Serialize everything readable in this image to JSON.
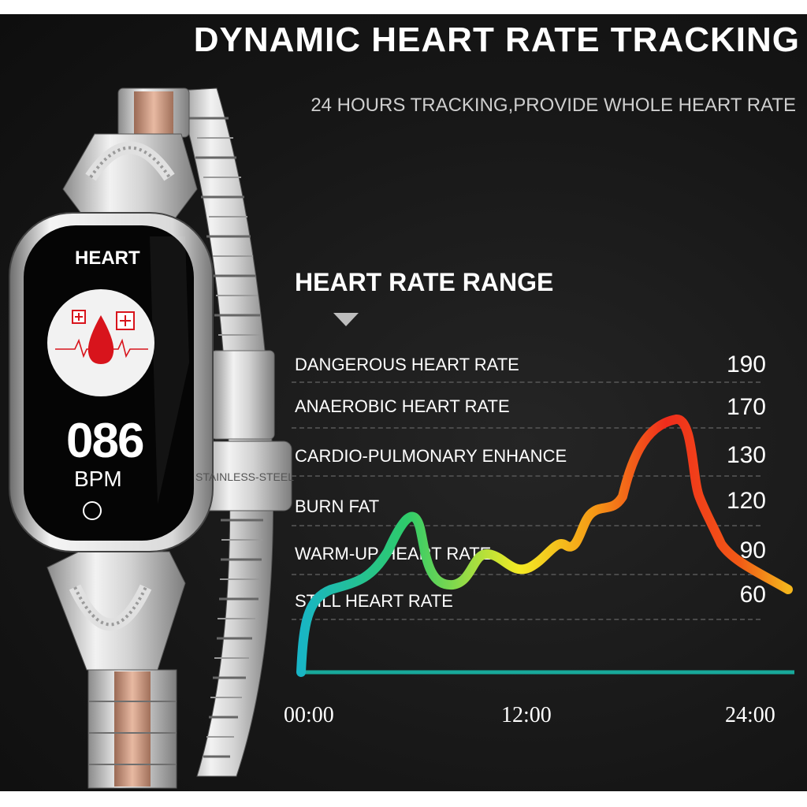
{
  "header": {
    "title": "DYNAMIC HEART RATE TRACKING",
    "subtitle": "24 HOURS TRACKING,PROVIDE WHOLE HEART RATE"
  },
  "watch": {
    "screen_title": "HEART",
    "bpm_value": "086",
    "bpm_unit": "BPM",
    "clasp_engraving": "STAINLESS-STEEL"
  },
  "heart_rate_range": {
    "title": "HEART RATE RANGE",
    "zones": [
      {
        "label": "DANGEROUS HEART RATE",
        "value": "190"
      },
      {
        "label": "ANAEROBIC HEART RATE",
        "value": "170"
      },
      {
        "label": "CARDIO-PULMONARY ENHANCE",
        "value": "130"
      },
      {
        "label": "BURN FAT",
        "value": "120"
      },
      {
        "label": "WARM-UP HEART RATE",
        "value": "90"
      },
      {
        "label": "STILL HEART RATE",
        "value": "60"
      }
    ]
  },
  "time_axis": {
    "labels": [
      "00:00",
      "12:00",
      "24:00"
    ]
  },
  "colors": {
    "background": "#161616",
    "gradient_stops": [
      "#18b5c6",
      "#2ecb6a",
      "#f4ea24",
      "#f59a16",
      "#f02c1c"
    ],
    "baseline": "#18a89a"
  }
}
